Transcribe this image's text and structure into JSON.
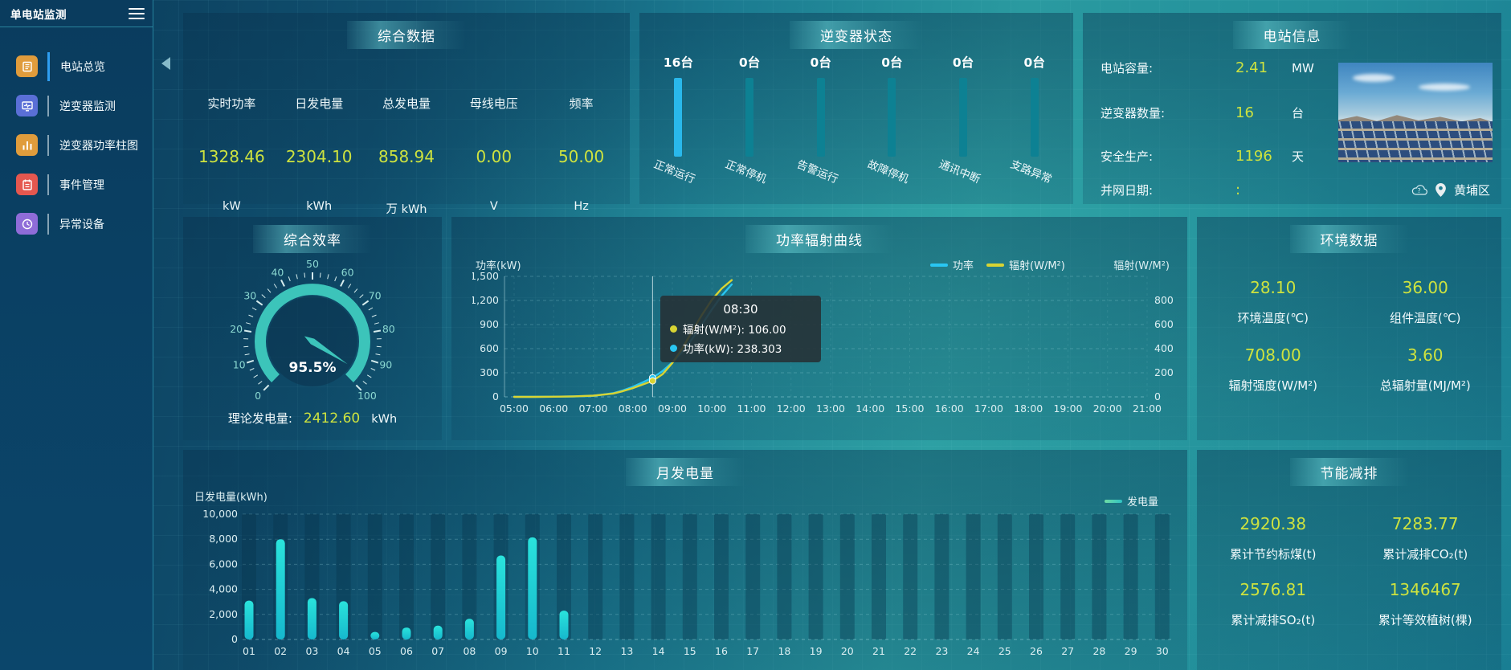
{
  "app": {
    "title": "单电站监测"
  },
  "colors": {
    "value_accent": "#cde23f",
    "power_line": "#29c6f2",
    "radiation_line": "#d8d433",
    "inverter_bar_highlight": "#29b8eb",
    "inverter_bar_normal": "#0d8193"
  },
  "sidebar": {
    "items": [
      {
        "label": "电站总览",
        "icon": "overview-report-icon",
        "color": "#e09c3c",
        "active": true
      },
      {
        "label": "逆变器监测",
        "icon": "inverter-monitor-icon",
        "color": "#5a6fd6",
        "active": false
      },
      {
        "label": "逆变器功率柱图",
        "icon": "power-bars-icon",
        "color": "#e09c3c",
        "active": false
      },
      {
        "label": "事件管理",
        "icon": "event-manage-icon",
        "color": "#e5574f",
        "active": false
      },
      {
        "label": "异常设备",
        "icon": "abnormal-device-icon",
        "color": "#8f6cd8",
        "active": false
      }
    ]
  },
  "summary": {
    "title": "综合数据",
    "metrics": [
      {
        "label": "实时功率",
        "value": "1328.46",
        "unit": "kW"
      },
      {
        "label": "日发电量",
        "value": "2304.10",
        "unit": "kWh"
      },
      {
        "label": "总发电量",
        "value": "858.94",
        "unit": "万 kWh"
      },
      {
        "label": "母线电压",
        "value": "0.00",
        "unit": "V"
      },
      {
        "label": "频率",
        "value": "50.00",
        "unit": "Hz"
      }
    ]
  },
  "inverter_status": {
    "title": "逆变器状态",
    "unit_suffix": "台",
    "items": [
      {
        "count": "16",
        "label": "正常运行",
        "highlight": true
      },
      {
        "count": "0",
        "label": "正常停机",
        "highlight": false
      },
      {
        "count": "0",
        "label": "告警运行",
        "highlight": false
      },
      {
        "count": "0",
        "label": "故障停机",
        "highlight": false
      },
      {
        "count": "0",
        "label": "通讯中断",
        "highlight": false
      },
      {
        "count": "0",
        "label": "支路异常",
        "highlight": false
      }
    ]
  },
  "station_info": {
    "title": "电站信息",
    "rows": [
      {
        "label": "电站容量:",
        "value": "2.41",
        "unit": "MW"
      },
      {
        "label": "逆变器数量:",
        "value": "16",
        "unit": "台"
      },
      {
        "label": "安全生产:",
        "value": "1196",
        "unit": "天"
      },
      {
        "label": "并网日期:",
        "value": ":",
        "unit": ""
      }
    ],
    "location": "黄埔区"
  },
  "efficiency": {
    "title": "综合效率",
    "gauge": {
      "value": 95.5,
      "display": "95.5%",
      "min": 0,
      "max": 100
    },
    "theoretical_label": "理论发电量:",
    "theoretical_value": "2412.60",
    "theoretical_unit": "kWh"
  },
  "environment": {
    "title": "环境数据",
    "cells": [
      {
        "value": "28.10",
        "label": "环境温度(℃)"
      },
      {
        "value": "36.00",
        "label": "组件温度(℃)"
      },
      {
        "value": "708.00",
        "label": "辐射强度(W/M²)"
      },
      {
        "value": "3.60",
        "label": "总辐射量(MJ/M²)"
      }
    ]
  },
  "energy_saving": {
    "title": "节能减排",
    "cells": [
      {
        "value": "2920.38",
        "label": "累计节约标煤(t)"
      },
      {
        "value": "7283.77",
        "label": "累计减排CO₂(t)"
      },
      {
        "value": "2576.81",
        "label": "累计减排SO₂(t)"
      },
      {
        "value": "1346467",
        "label": "累计等效植树(棵)"
      }
    ]
  },
  "chart_data": [
    {
      "id": "power_radiation_curve",
      "type": "line",
      "title": "功率辐射曲线",
      "legend": [
        "功率",
        "辐射(W/M²)"
      ],
      "legend_colors": [
        "#29c6f2",
        "#d8d433"
      ],
      "y_left": {
        "label": "功率(kW)",
        "min": 0,
        "max": 1500,
        "ticks": [
          0,
          300,
          600,
          900,
          1200,
          1500
        ]
      },
      "y_right": {
        "label": "辐射(W/M²)",
        "min": 0,
        "max": 800,
        "ticks": [
          0,
          200,
          400,
          600,
          800
        ]
      },
      "x_ticks": [
        "05:00",
        "06:00",
        "07:00",
        "08:00",
        "09:00",
        "10:00",
        "11:00",
        "12:00",
        "13:00",
        "14:00",
        "15:00",
        "16:00",
        "17:00",
        "18:00",
        "19:00",
        "20:00",
        "21:00"
      ],
      "series": [
        {
          "name": "功率",
          "axis": "left",
          "color": "#29c6f2",
          "points": [
            [
              "05:00",
              0
            ],
            [
              "05:30",
              0
            ],
            [
              "06:00",
              2
            ],
            [
              "06:30",
              5
            ],
            [
              "07:00",
              12
            ],
            [
              "07:30",
              45
            ],
            [
              "07:45",
              80
            ],
            [
              "08:00",
              125
            ],
            [
              "08:15",
              180
            ],
            [
              "08:30",
              238.303
            ],
            [
              "08:45",
              320
            ],
            [
              "09:00",
              430
            ],
            [
              "09:15",
              560
            ],
            [
              "09:30",
              720
            ],
            [
              "09:45",
              900
            ],
            [
              "10:00",
              1090
            ],
            [
              "10:15",
              1260
            ],
            [
              "10:30",
              1400
            ]
          ]
        },
        {
          "name": "辐射(W/M²)",
          "axis": "right",
          "color": "#d8d433",
          "points": [
            [
              "05:00",
              0
            ],
            [
              "05:30",
              0
            ],
            [
              "06:00",
              1
            ],
            [
              "06:30",
              3
            ],
            [
              "07:00",
              8
            ],
            [
              "07:30",
              22
            ],
            [
              "07:45",
              38
            ],
            [
              "08:00",
              58
            ],
            [
              "08:15",
              82
            ],
            [
              "08:30",
              106
            ],
            [
              "08:45",
              150
            ],
            [
              "09:00",
              225
            ],
            [
              "09:15",
              320
            ],
            [
              "09:30",
              435
            ],
            [
              "09:45",
              545
            ],
            [
              "10:00",
              645
            ],
            [
              "10:15",
              720
            ],
            [
              "10:30",
              775
            ]
          ]
        }
      ],
      "tooltip": {
        "time": "08:30",
        "rows": [
          {
            "label": "辐射(W/M²)",
            "value": "106.00",
            "color": "#d8d433"
          },
          {
            "label": "功率(kW)",
            "value": "238.303",
            "color": "#29c6f2"
          }
        ]
      }
    },
    {
      "id": "monthly_generation",
      "type": "bar",
      "title": "月发电量",
      "legend": [
        "发电量"
      ],
      "ylabel": "日发电量(kWh)",
      "ylim": [
        0,
        10000
      ],
      "yticks": [
        0,
        2000,
        4000,
        6000,
        8000,
        10000
      ],
      "bar_color_top": "#2ae3dc",
      "bar_color_bottom": "#16b8cd",
      "categories": [
        "01",
        "02",
        "03",
        "04",
        "05",
        "06",
        "07",
        "08",
        "09",
        "10",
        "11",
        "12",
        "13",
        "14",
        "15",
        "16",
        "17",
        "18",
        "19",
        "20",
        "21",
        "22",
        "23",
        "24",
        "25",
        "26",
        "27",
        "28",
        "29",
        "30"
      ],
      "values": [
        3100,
        8000,
        3300,
        3050,
        600,
        950,
        1100,
        1650,
        6700,
        8150,
        2300,
        0,
        0,
        0,
        0,
        0,
        0,
        0,
        0,
        0,
        0,
        0,
        0,
        0,
        0,
        0,
        0,
        0,
        0,
        0
      ]
    }
  ]
}
